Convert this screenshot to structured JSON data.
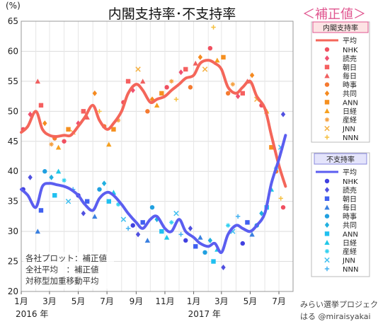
{
  "chart_data": {
    "type": "scatter",
    "title": "内閣支持率･不支持率",
    "subtitle": "＜補正値＞",
    "ylabel": "(%)",
    "ylim": [
      20,
      65
    ],
    "yticks": [
      20,
      25,
      30,
      35,
      40,
      45,
      50,
      55,
      60,
      65
    ],
    "x_range": [
      "2016-01-01",
      "2017-07-31"
    ],
    "x_ticks": [
      {
        "date": "2016-01-01",
        "label": "1月"
      },
      {
        "date": "2016-03-01",
        "label": "3月"
      },
      {
        "date": "2016-05-01",
        "label": "5月"
      },
      {
        "date": "2016-07-01",
        "label": "7月"
      },
      {
        "date": "2016-09-01",
        "label": "9月"
      },
      {
        "date": "2016-11-01",
        "label": "11月"
      },
      {
        "date": "2017-01-01",
        "label": "1月"
      },
      {
        "date": "2017-03-01",
        "label": "3月"
      },
      {
        "date": "2017-05-01",
        "label": "5月"
      },
      {
        "date": "2017-07-01",
        "label": "7月"
      }
    ],
    "year_labels": [
      {
        "date": "2016-01-01",
        "label": "2016 年"
      },
      {
        "date": "2017-01-01",
        "label": "2017 年"
      }
    ],
    "grid": true,
    "colors": {
      "approval": "#f4665a",
      "disapproval": "#5b5ef0",
      "approval_legend_bg": "#fde3e4",
      "disapproval_legend_bg": "#e4e4fb",
      "subtitle": "#e0558f"
    },
    "approval": {
      "legend_title": "内閣支持率",
      "average_label": "平均",
      "outlets": [
        "NHK",
        "読売",
        "朝日",
        "毎日",
        "時事",
        "共同",
        "ANN",
        "日経",
        "産経",
        "JNN",
        "NNN"
      ],
      "average_series": [
        {
          "x": "2016-01-01",
          "y": 46.5
        },
        {
          "x": "2016-01-15",
          "y": 47.5
        },
        {
          "x": "2016-02-01",
          "y": 50.0
        },
        {
          "x": "2016-02-15",
          "y": 47.0
        },
        {
          "x": "2016-03-01",
          "y": 46.0
        },
        {
          "x": "2016-03-15",
          "y": 45.8
        },
        {
          "x": "2016-04-01",
          "y": 46.0
        },
        {
          "x": "2016-04-15",
          "y": 46.0
        },
        {
          "x": "2016-05-01",
          "y": 47.5
        },
        {
          "x": "2016-05-15",
          "y": 49.0
        },
        {
          "x": "2016-06-01",
          "y": 51.0
        },
        {
          "x": "2016-06-15",
          "y": 48.5
        },
        {
          "x": "2016-07-01",
          "y": 47.0
        },
        {
          "x": "2016-07-15",
          "y": 48.0
        },
        {
          "x": "2016-08-01",
          "y": 50.0
        },
        {
          "x": "2016-08-15",
          "y": 53.0
        },
        {
          "x": "2016-09-01",
          "y": 54.5
        },
        {
          "x": "2016-09-15",
          "y": 53.5
        },
        {
          "x": "2016-10-01",
          "y": 51.5
        },
        {
          "x": "2016-10-15",
          "y": 52.0
        },
        {
          "x": "2016-11-01",
          "y": 52.5
        },
        {
          "x": "2016-11-15",
          "y": 53.5
        },
        {
          "x": "2016-12-01",
          "y": 54.5
        },
        {
          "x": "2016-12-15",
          "y": 55.5
        },
        {
          "x": "2017-01-01",
          "y": 56.0
        },
        {
          "x": "2017-01-15",
          "y": 58.0
        },
        {
          "x": "2017-02-01",
          "y": 58.5
        },
        {
          "x": "2017-02-15",
          "y": 58.0
        },
        {
          "x": "2017-03-01",
          "y": 57.0
        },
        {
          "x": "2017-03-15",
          "y": 54.0
        },
        {
          "x": "2017-04-01",
          "y": 53.0
        },
        {
          "x": "2017-04-15",
          "y": 54.0
        },
        {
          "x": "2017-05-01",
          "y": 55.0
        },
        {
          "x": "2017-05-15",
          "y": 52.5
        },
        {
          "x": "2017-06-01",
          "y": 50.5
        },
        {
          "x": "2017-06-15",
          "y": 46.0
        },
        {
          "x": "2017-07-01",
          "y": 41.0
        },
        {
          "x": "2017-07-15",
          "y": 37.5
        }
      ],
      "points": [
        {
          "x": "2016-01-05",
          "y": 47.0,
          "outlet": "NHK"
        },
        {
          "x": "2016-01-20",
          "y": 49.5,
          "outlet": "読売"
        },
        {
          "x": "2016-02-05",
          "y": 55.0,
          "outlet": "毎日"
        },
        {
          "x": "2016-02-12",
          "y": 51.0,
          "outlet": "朝日"
        },
        {
          "x": "2016-02-20",
          "y": 48.0,
          "outlet": "共同"
        },
        {
          "x": "2016-03-05",
          "y": 44.5,
          "outlet": "産経"
        },
        {
          "x": "2016-03-12",
          "y": 45.5,
          "outlet": "時事"
        },
        {
          "x": "2016-03-20",
          "y": 44.0,
          "outlet": "日経"
        },
        {
          "x": "2016-04-01",
          "y": 45.0,
          "outlet": "NHK"
        },
        {
          "x": "2016-04-10",
          "y": 47.0,
          "outlet": "ANN"
        },
        {
          "x": "2016-04-20",
          "y": 46.5,
          "outlet": "JNN"
        },
        {
          "x": "2016-05-01",
          "y": 48.0,
          "outlet": "読売"
        },
        {
          "x": "2016-05-12",
          "y": 50.0,
          "outlet": "朝日"
        },
        {
          "x": "2016-05-20",
          "y": 49.0,
          "outlet": "毎日"
        },
        {
          "x": "2016-06-05",
          "y": 53.0,
          "outlet": "共同"
        },
        {
          "x": "2016-06-15",
          "y": 50.0,
          "outlet": "NNN"
        },
        {
          "x": "2016-06-25",
          "y": 47.5,
          "outlet": "時事"
        },
        {
          "x": "2016-07-05",
          "y": 44.5,
          "outlet": "日経"
        },
        {
          "x": "2016-07-15",
          "y": 47.0,
          "outlet": "ANN"
        },
        {
          "x": "2016-07-25",
          "y": 48.5,
          "outlet": "産経"
        },
        {
          "x": "2016-08-05",
          "y": 51.5,
          "outlet": "NHK"
        },
        {
          "x": "2016-08-15",
          "y": 55.0,
          "outlet": "朝日"
        },
        {
          "x": "2016-08-25",
          "y": 53.5,
          "outlet": "読売"
        },
        {
          "x": "2016-09-05",
          "y": 57.0,
          "outlet": "JNN"
        },
        {
          "x": "2016-09-15",
          "y": 55.0,
          "outlet": "毎日"
        },
        {
          "x": "2016-09-25",
          "y": 50.0,
          "outlet": "時事"
        },
        {
          "x": "2016-10-05",
          "y": 52.0,
          "outlet": "共同"
        },
        {
          "x": "2016-10-15",
          "y": 51.0,
          "outlet": "日経"
        },
        {
          "x": "2016-10-25",
          "y": 53.0,
          "outlet": "ANN"
        },
        {
          "x": "2016-11-05",
          "y": 54.0,
          "outlet": "NHK"
        },
        {
          "x": "2016-11-15",
          "y": 55.0,
          "outlet": "産経"
        },
        {
          "x": "2016-11-25",
          "y": 52.0,
          "outlet": "NNN"
        },
        {
          "x": "2016-12-05",
          "y": 56.5,
          "outlet": "読売"
        },
        {
          "x": "2016-12-15",
          "y": 57.0,
          "outlet": "朝日"
        },
        {
          "x": "2016-12-25",
          "y": 54.0,
          "outlet": "時事"
        },
        {
          "x": "2017-01-05",
          "y": 58.0,
          "outlet": "毎日"
        },
        {
          "x": "2017-01-15",
          "y": 59.0,
          "outlet": "共同"
        },
        {
          "x": "2017-01-25",
          "y": 57.0,
          "outlet": "JNN"
        },
        {
          "x": "2017-02-05",
          "y": 60.5,
          "outlet": "NHK"
        },
        {
          "x": "2017-02-12",
          "y": 64.0,
          "outlet": "NNN"
        },
        {
          "x": "2017-02-20",
          "y": 58.5,
          "outlet": "日経"
        },
        {
          "x": "2017-03-05",
          "y": 59.0,
          "outlet": "ANN"
        },
        {
          "x": "2017-03-15",
          "y": 53.0,
          "outlet": "時事"
        },
        {
          "x": "2017-03-25",
          "y": 54.5,
          "outlet": "産経"
        },
        {
          "x": "2017-04-05",
          "y": 52.5,
          "outlet": "読売"
        },
        {
          "x": "2017-04-15",
          "y": 53.0,
          "outlet": "朝日"
        },
        {
          "x": "2017-04-25",
          "y": 55.0,
          "outlet": "毎日"
        },
        {
          "x": "2017-05-05",
          "y": 56.0,
          "outlet": "共同"
        },
        {
          "x": "2017-05-15",
          "y": 52.0,
          "outlet": "JNN"
        },
        {
          "x": "2017-05-25",
          "y": 51.0,
          "outlet": "NHK"
        },
        {
          "x": "2017-06-05",
          "y": 50.0,
          "outlet": "日経"
        },
        {
          "x": "2017-06-15",
          "y": 44.0,
          "outlet": "ANN"
        },
        {
          "x": "2017-06-25",
          "y": 40.0,
          "outlet": "時事"
        },
        {
          "x": "2017-07-05",
          "y": 35.5,
          "outlet": "NNN"
        },
        {
          "x": "2017-07-10",
          "y": 34.0,
          "outlet": "NHK"
        }
      ]
    },
    "disapproval": {
      "legend_title": "不支持率",
      "average_label": "平均",
      "outlets": [
        "NHK",
        "読売",
        "朝日",
        "毎日",
        "時事",
        "共同",
        "ANN",
        "日経",
        "産経",
        "JNN",
        "NNN"
      ],
      "average_series": [
        {
          "x": "2016-01-01",
          "y": 37.0
        },
        {
          "x": "2016-01-15",
          "y": 36.0
        },
        {
          "x": "2016-02-01",
          "y": 34.0
        },
        {
          "x": "2016-02-15",
          "y": 37.5
        },
        {
          "x": "2016-03-01",
          "y": 38.0
        },
        {
          "x": "2016-03-15",
          "y": 37.8
        },
        {
          "x": "2016-04-01",
          "y": 37.5
        },
        {
          "x": "2016-04-15",
          "y": 37.0
        },
        {
          "x": "2016-05-01",
          "y": 36.0
        },
        {
          "x": "2016-05-15",
          "y": 34.5
        },
        {
          "x": "2016-06-01",
          "y": 33.5
        },
        {
          "x": "2016-06-15",
          "y": 35.5
        },
        {
          "x": "2016-07-01",
          "y": 36.5
        },
        {
          "x": "2016-07-15",
          "y": 36.0
        },
        {
          "x": "2016-08-01",
          "y": 34.5
        },
        {
          "x": "2016-08-15",
          "y": 33.0
        },
        {
          "x": "2016-09-01",
          "y": 31.5
        },
        {
          "x": "2016-09-15",
          "y": 30.5
        },
        {
          "x": "2016-10-01",
          "y": 32.0
        },
        {
          "x": "2016-10-15",
          "y": 32.5
        },
        {
          "x": "2016-11-01",
          "y": 30.5
        },
        {
          "x": "2016-11-15",
          "y": 30.0
        },
        {
          "x": "2016-12-01",
          "y": 32.0
        },
        {
          "x": "2016-12-15",
          "y": 30.0
        },
        {
          "x": "2017-01-01",
          "y": 29.0
        },
        {
          "x": "2017-01-15",
          "y": 28.0
        },
        {
          "x": "2017-02-01",
          "y": 27.5
        },
        {
          "x": "2017-02-15",
          "y": 28.0
        },
        {
          "x": "2017-03-01",
          "y": 26.5
        },
        {
          "x": "2017-03-15",
          "y": 29.5
        },
        {
          "x": "2017-04-01",
          "y": 31.0
        },
        {
          "x": "2017-04-15",
          "y": 30.5
        },
        {
          "x": "2017-05-01",
          "y": 30.0
        },
        {
          "x": "2017-05-15",
          "y": 31.0
        },
        {
          "x": "2017-06-01",
          "y": 33.0
        },
        {
          "x": "2017-06-15",
          "y": 38.0
        },
        {
          "x": "2017-07-01",
          "y": 42.0
        },
        {
          "x": "2017-07-15",
          "y": 46.0
        }
      ],
      "points": [
        {
          "x": "2016-01-05",
          "y": 37.0,
          "outlet": "NHK"
        },
        {
          "x": "2016-01-20",
          "y": 39.0,
          "outlet": "読売"
        },
        {
          "x": "2016-02-05",
          "y": 30.0,
          "outlet": "毎日"
        },
        {
          "x": "2016-02-12",
          "y": 33.5,
          "outlet": "朝日"
        },
        {
          "x": "2016-02-20",
          "y": 40.0,
          "outlet": "時事"
        },
        {
          "x": "2016-03-05",
          "y": 39.0,
          "outlet": "共同"
        },
        {
          "x": "2016-03-12",
          "y": 36.0,
          "outlet": "ANN"
        },
        {
          "x": "2016-03-20",
          "y": 40.0,
          "outlet": "日経"
        },
        {
          "x": "2016-04-01",
          "y": 38.5,
          "outlet": "産経"
        },
        {
          "x": "2016-04-10",
          "y": 35.0,
          "outlet": "JNN"
        },
        {
          "x": "2016-04-20",
          "y": 37.0,
          "outlet": "NNN"
        },
        {
          "x": "2016-05-01",
          "y": 36.0,
          "outlet": "NHK"
        },
        {
          "x": "2016-05-12",
          "y": 33.0,
          "outlet": "読売"
        },
        {
          "x": "2016-05-20",
          "y": 35.0,
          "outlet": "朝日"
        },
        {
          "x": "2016-06-05",
          "y": 32.5,
          "outlet": "毎日"
        },
        {
          "x": "2016-06-15",
          "y": 37.0,
          "outlet": "時事"
        },
        {
          "x": "2016-06-25",
          "y": 38.0,
          "outlet": "共同"
        },
        {
          "x": "2016-07-05",
          "y": 35.0,
          "outlet": "ANN"
        },
        {
          "x": "2016-07-15",
          "y": 36.5,
          "outlet": "日経"
        },
        {
          "x": "2016-07-25",
          "y": 34.5,
          "outlet": "産経"
        },
        {
          "x": "2016-08-05",
          "y": 32.0,
          "outlet": "JNN"
        },
        {
          "x": "2016-08-15",
          "y": 30.5,
          "outlet": "NNN"
        },
        {
          "x": "2016-08-25",
          "y": 31.0,
          "outlet": "NHK"
        },
        {
          "x": "2016-09-05",
          "y": 29.5,
          "outlet": "読売"
        },
        {
          "x": "2016-09-15",
          "y": 31.5,
          "outlet": "朝日"
        },
        {
          "x": "2016-09-25",
          "y": 28.5,
          "outlet": "毎日"
        },
        {
          "x": "2016-10-05",
          "y": 34.0,
          "outlet": "時事"
        },
        {
          "x": "2016-10-15",
          "y": 32.0,
          "outlet": "共同"
        },
        {
          "x": "2016-10-25",
          "y": 30.0,
          "outlet": "ANN"
        },
        {
          "x": "2016-11-05",
          "y": 29.0,
          "outlet": "日経"
        },
        {
          "x": "2016-11-15",
          "y": 31.5,
          "outlet": "産経"
        },
        {
          "x": "2016-11-25",
          "y": 33.0,
          "outlet": "JNN"
        },
        {
          "x": "2016-12-05",
          "y": 29.5,
          "outlet": "NNN"
        },
        {
          "x": "2016-12-15",
          "y": 28.5,
          "outlet": "NHK"
        },
        {
          "x": "2016-12-25",
          "y": 30.5,
          "outlet": "読売"
        },
        {
          "x": "2017-01-05",
          "y": 27.5,
          "outlet": "朝日"
        },
        {
          "x": "2017-01-15",
          "y": 29.0,
          "outlet": "毎日"
        },
        {
          "x": "2017-01-25",
          "y": 26.5,
          "outlet": "時事"
        },
        {
          "x": "2017-02-05",
          "y": 28.5,
          "outlet": "共同"
        },
        {
          "x": "2017-02-12",
          "y": 25.0,
          "outlet": "ANN"
        },
        {
          "x": "2017-02-20",
          "y": 27.0,
          "outlet": "日経"
        },
        {
          "x": "2017-03-05",
          "y": 24.0,
          "outlet": "読売"
        },
        {
          "x": "2017-03-15",
          "y": 31.0,
          "outlet": "産経"
        },
        {
          "x": "2017-03-25",
          "y": 30.0,
          "outlet": "JNN"
        },
        {
          "x": "2017-04-05",
          "y": 32.5,
          "outlet": "NNN"
        },
        {
          "x": "2017-04-15",
          "y": 28.0,
          "outlet": "NHK"
        },
        {
          "x": "2017-04-25",
          "y": 31.5,
          "outlet": "朝日"
        },
        {
          "x": "2017-05-05",
          "y": 29.5,
          "outlet": "毎日"
        },
        {
          "x": "2017-05-15",
          "y": 31.0,
          "outlet": "時事"
        },
        {
          "x": "2017-05-25",
          "y": 33.0,
          "outlet": "共同"
        },
        {
          "x": "2017-06-05",
          "y": 34.0,
          "outlet": "ANN"
        },
        {
          "x": "2017-06-15",
          "y": 37.0,
          "outlet": "日経"
        },
        {
          "x": "2017-06-25",
          "y": 40.5,
          "outlet": "産経"
        },
        {
          "x": "2017-07-05",
          "y": 44.0,
          "outlet": "JNN"
        },
        {
          "x": "2017-07-10",
          "y": 49.5,
          "outlet": "読売"
        }
      ]
    },
    "notes": [
      "各社プロット：補正値",
      "全社平均　：補正値",
      "対称型加重移動平均"
    ],
    "credit": [
      "みらい選挙プロジェクト",
      "はる @miraisyakai"
    ]
  }
}
